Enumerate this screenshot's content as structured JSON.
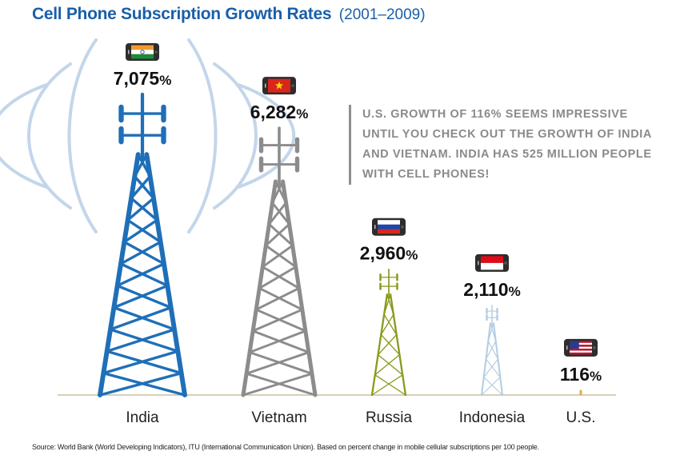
{
  "header": {
    "title": "Cell Phone Subscription Growth Rates",
    "subtitle": "(2001–2009)"
  },
  "callout": {
    "text": "U.S. growth of 116% seems impressive until you check out the growth of India and Vietnam. India has 525 million people with cell phones!"
  },
  "source": {
    "text": "Source: World Bank (World Developing Indicators), ITU (International Communication Union). Based on percent change in mobile cellular subscriptions per 100 people."
  },
  "chart_data": {
    "type": "bar",
    "title": "Cell Phone Subscription Growth Rates (2001–2009)",
    "xlabel": "",
    "ylabel": "",
    "categories": [
      "India",
      "Vietnam",
      "Russia",
      "Indonesia",
      "U.S."
    ],
    "values": [
      7075,
      6282,
      2960,
      2110,
      116
    ],
    "value_labels": [
      "7,075",
      "6,282",
      "2,960",
      "2,110",
      "116"
    ],
    "value_suffix": "%",
    "ylim": [
      0,
      7075
    ],
    "grid": false,
    "legend": "none",
    "colors": [
      "#1f6fb8",
      "#8c8c8c",
      "#8c9a1e",
      "#b5cde3",
      "#d7b04a"
    ],
    "flag_icons": [
      "india-flag-icon",
      "vietnam-flag-icon",
      "russia-flag-icon",
      "indonesia-flag-icon",
      "us-flag-icon"
    ]
  }
}
